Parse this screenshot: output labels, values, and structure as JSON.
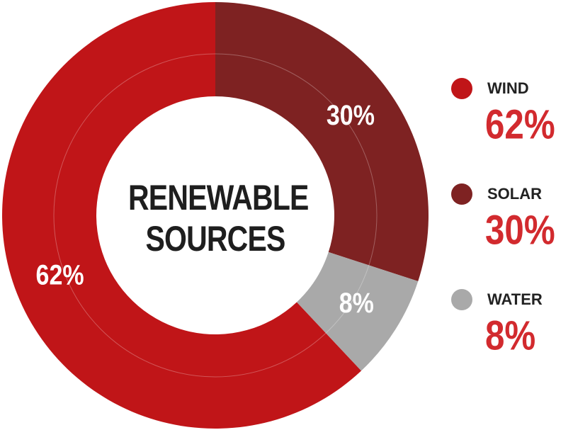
{
  "chart_data": {
    "type": "donut",
    "title": "RENEWABLE SOURCES",
    "categories": [
      "WIND",
      "SOLAR",
      "WATER"
    ],
    "values": [
      62,
      30,
      8
    ],
    "value_labels": [
      "62%",
      "30%",
      "8%"
    ],
    "colors": [
      "#c01518",
      "#7e2222",
      "#a9a9a9"
    ]
  }
}
